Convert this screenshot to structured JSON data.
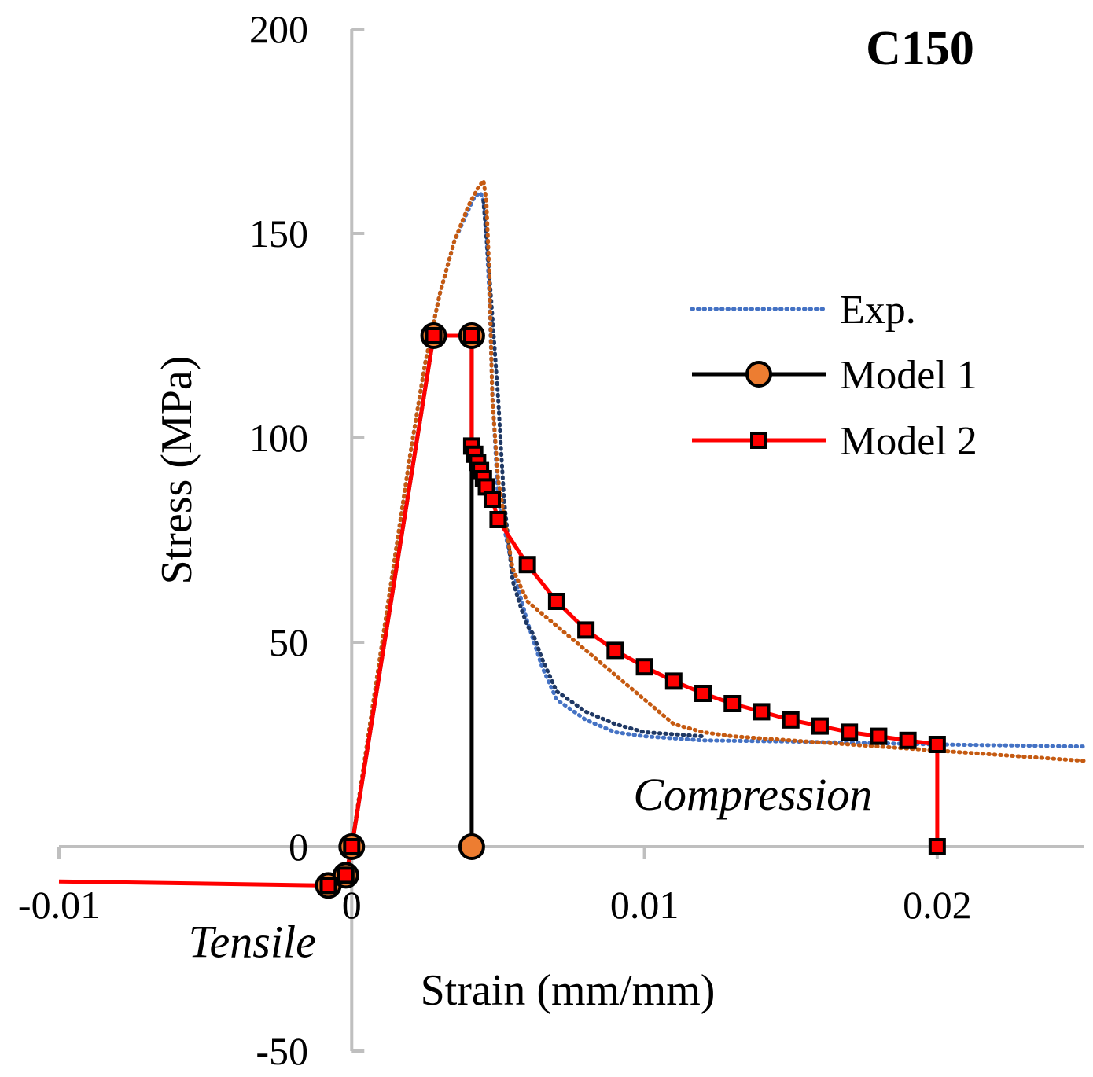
{
  "chart_data": {
    "type": "line",
    "title": "C150",
    "xlabel": "Strain (mm/mm)",
    "ylabel": "Stress (MPa)",
    "xlim": [
      -0.01,
      0.025
    ],
    "ylim": [
      -50,
      200
    ],
    "x_ticks": [
      -0.01,
      0,
      0.01,
      0.02
    ],
    "x_tick_labels": [
      "-0.01",
      "0",
      "0.01",
      "0.02"
    ],
    "y_ticks": [
      -50,
      0,
      50,
      100,
      150,
      200
    ],
    "y_tick_labels": [
      "-50",
      "0",
      "50",
      "100",
      "150",
      "200"
    ],
    "grid": false,
    "legend_position": "right",
    "annotations": [
      {
        "text": "Compression",
        "x": 0.0137,
        "y": 9
      },
      {
        "text": "Tensile",
        "x": -0.0034,
        "y": -27
      }
    ],
    "colors": {
      "exp_specimen_1": "#4472c4",
      "exp_specimen_2": "#1f3864",
      "exp_specimen_3": "#c55a11",
      "model_1_line": "#000000",
      "model_1_marker": "#ed7d31",
      "model_2_line": "#ff0000",
      "model_2_marker": "#ff0000",
      "axis": "#bfbfbf"
    },
    "series": [
      {
        "name": "Exp.",
        "style": "dotted",
        "color": "#4472c4",
        "x": [
          0,
          0.0005,
          0.001,
          0.0015,
          0.002,
          0.0025,
          0.003,
          0.0035,
          0.004,
          0.0042,
          0.0044,
          0.0045,
          0.0046,
          0.0047,
          0.0048,
          0.005,
          0.0055,
          0.006,
          0.0065,
          0.007,
          0.008,
          0.009,
          0.01,
          0.011,
          0.012,
          0.014,
          0.016,
          0.018,
          0.02,
          0.022,
          0.024,
          0.025
        ],
        "y": [
          0,
          24,
          48,
          72,
          96,
          118,
          135,
          148,
          156,
          159,
          160,
          158,
          150,
          135,
          112,
          85,
          68,
          55,
          44,
          36,
          31,
          28,
          27,
          26.5,
          26,
          25.8,
          25.6,
          25.3,
          25,
          24.8,
          24.6,
          24.5
        ]
      },
      {
        "name": "",
        "style": "dotted",
        "color": "#1f3864",
        "x": [
          0.0045,
          0.0047,
          0.005,
          0.0052,
          0.0055,
          0.0058,
          0.006,
          0.0062,
          0.0065,
          0.007,
          0.008,
          0.009,
          0.01,
          0.011,
          0.012
        ],
        "y": [
          158,
          140,
          110,
          85,
          65,
          58,
          54,
          52,
          46,
          38,
          33,
          30,
          28,
          27.5,
          27
        ]
      },
      {
        "name": "",
        "style": "dotted",
        "color": "#c55a11",
        "x": [
          0,
          0.0005,
          0.001,
          0.0015,
          0.002,
          0.0025,
          0.003,
          0.0035,
          0.004,
          0.0043,
          0.0045,
          0.0046,
          0.0047,
          0.0048,
          0.005,
          0.0055,
          0.006,
          0.007,
          0.008,
          0.009,
          0.01,
          0.011,
          0.012,
          0.013,
          0.014,
          0.016,
          0.018,
          0.02,
          0.022,
          0.024,
          0.025
        ],
        "y": [
          0,
          24,
          48,
          72,
          96,
          118,
          135,
          148,
          157,
          161,
          163,
          158,
          140,
          110,
          90,
          68,
          60,
          54,
          48,
          42,
          36,
          30,
          28,
          27,
          26.5,
          25.5,
          24.5,
          23.5,
          22.5,
          21.5,
          21
        ]
      },
      {
        "name": "Model 1",
        "style": "solid",
        "marker": "circle",
        "color": "#000000",
        "marker_color": "#ed7d31",
        "x": [
          -0.0008,
          -0.0002,
          0,
          0.0028,
          0.0041,
          0.0041
        ],
        "y": [
          -9.5,
          -7,
          0,
          125,
          125,
          0
        ]
      },
      {
        "name": "Model 2",
        "style": "solid",
        "marker": "square",
        "color": "#ff0000",
        "marker_color": "#ff0000",
        "x": [
          -0.01,
          -0.0008,
          -0.0002,
          0,
          0.0028,
          0.0041,
          0.0041,
          0.0042,
          0.0043,
          0.0044,
          0.0045,
          0.0046,
          0.0048,
          0.005,
          0.006,
          0.007,
          0.008,
          0.009,
          0.01,
          0.011,
          0.012,
          0.013,
          0.014,
          0.015,
          0.016,
          0.017,
          0.018,
          0.019,
          0.02,
          0.02
        ],
        "y": [
          -8.5,
          -9.5,
          -7,
          0,
          125,
          125,
          98,
          96,
          94,
          92,
          90,
          88,
          85,
          80,
          69,
          60,
          53,
          48,
          44,
          40.5,
          37.5,
          35,
          33,
          31,
          29.5,
          28,
          27,
          26,
          25,
          0
        ]
      }
    ],
    "legend": [
      {
        "label": "Exp.",
        "series": 0
      },
      {
        "label": "Model 1",
        "series": 3
      },
      {
        "label": "Model 2",
        "series": 4
      }
    ]
  }
}
